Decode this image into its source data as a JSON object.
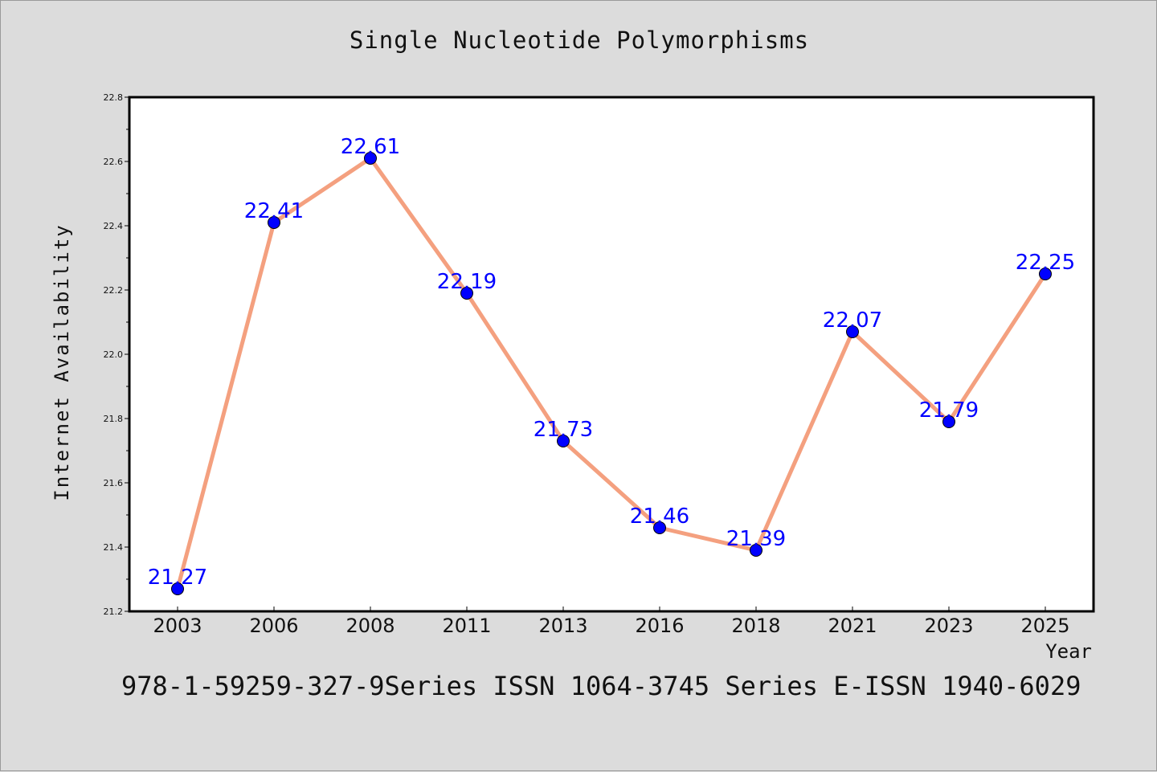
{
  "chart_data": {
    "type": "line",
    "title": "Single Nucleotide Polymorphisms",
    "xlabel": "Year",
    "ylabel": "Internet Availability",
    "categories": [
      "2003",
      "2006",
      "2008",
      "2011",
      "2013",
      "2016",
      "2018",
      "2021",
      "2023",
      "2025"
    ],
    "values": [
      21.27,
      22.41,
      22.61,
      22.19,
      21.73,
      21.46,
      21.39,
      22.07,
      21.79,
      22.25
    ],
    "value_labels": [
      "21.27",
      "22.41",
      "22.61",
      "22.19",
      "21.73",
      "21.46",
      "21.39",
      "22.07",
      "21.79",
      "22.25"
    ],
    "ylim": [
      21.2,
      22.8
    ],
    "y_ticks": [
      "21.2",
      "21.4",
      "21.6",
      "21.8",
      "22.0",
      "22.2",
      "22.4",
      "22.6",
      "22.8"
    ],
    "grid": false,
    "legend": "none",
    "line_color": "#f4a07f",
    "marker_color": "#0000ff",
    "label_color": "#0000ff"
  },
  "footer": "978-1-59259-327-9Series ISSN 1064-3745 Series E-ISSN 1940-6029"
}
